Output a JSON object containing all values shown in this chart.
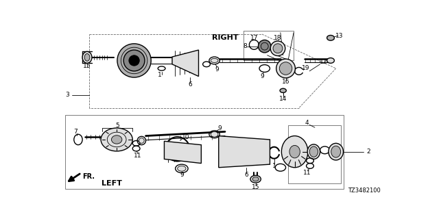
{
  "bg_color": "#ffffff",
  "fig_width": 6.4,
  "fig_height": 3.2,
  "diagram_code": "TZ3482100",
  "right_label": "RIGHT",
  "left_label": "LEFT",
  "fr_label": "FR.",
  "gray_fill": "#c8c8c8",
  "dark_gray": "#888888",
  "light_gray": "#e0e0e0",
  "mid_gray": "#b0b0b0"
}
